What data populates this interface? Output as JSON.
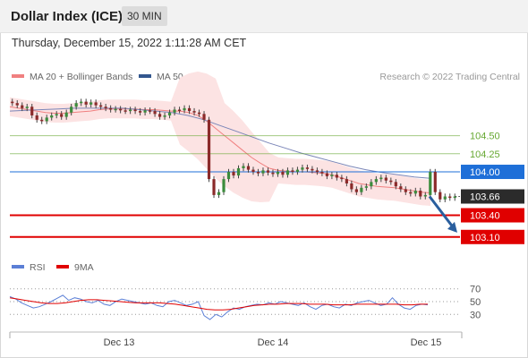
{
  "header": {
    "title": "Dollar Index (ICE)",
    "period": "30 MIN"
  },
  "datetime": "Thursday, December 15, 2022 1:11:28 AM CET",
  "legend": [
    {
      "label": "MA 20 + Bollinger Bands",
      "color": "#f08080"
    },
    {
      "label": "MA 50",
      "color": "#33578e"
    }
  ],
  "copyright": "Research © 2022 Trading Central",
  "rsi_legend": [
    {
      "label": "RSI",
      "color": "#5b7fd6"
    },
    {
      "label": "9MA",
      "color": "#e00000"
    }
  ],
  "chart_data": {
    "type": "candlestick",
    "x_labels": [
      "Dec 13",
      "Dec 14",
      "Dec 15"
    ],
    "ylim": [
      102.85,
      105.2
    ],
    "levels": [
      {
        "label": "104.50",
        "value": 104.5,
        "color": "#66a832",
        "style": "line"
      },
      {
        "label": "104.25",
        "value": 104.25,
        "color": "#66a832",
        "style": "line"
      },
      {
        "label": "104.00",
        "value": 104.0,
        "color": "#1e6fd8",
        "style": "line"
      },
      {
        "label": "103.66",
        "value": 103.66,
        "color": "#333333",
        "style": "current"
      },
      {
        "label": "103.40",
        "value": 103.4,
        "color": "#e00000",
        "style": "line"
      },
      {
        "label": "103.10",
        "value": 103.1,
        "color": "#e00000",
        "style": "line"
      }
    ],
    "closes": [
      104.95,
      104.92,
      104.88,
      104.9,
      104.78,
      104.72,
      104.7,
      104.75,
      104.78,
      104.8,
      104.76,
      104.82,
      104.9,
      104.95,
      104.97,
      104.93,
      104.96,
      104.92,
      104.9,
      104.88,
      104.86,
      104.87,
      104.85,
      104.84,
      104.86,
      104.84,
      104.82,
      104.85,
      104.84,
      104.8,
      104.76,
      104.78,
      104.82,
      104.86,
      104.85,
      104.88,
      104.84,
      104.82,
      104.8,
      104.72,
      103.9,
      103.68,
      103.72,
      103.9,
      104.0,
      103.95,
      104.05,
      104.08,
      104.03,
      104.0,
      103.98,
      104.02,
      103.99,
      103.97,
      104.0,
      103.96,
      104.02,
      104.0,
      104.03,
      104.06,
      104.04,
      104.02,
      104.0,
      103.98,
      103.94,
      103.96,
      103.92,
      103.9,
      103.84,
      103.76,
      103.72,
      103.78,
      103.8,
      103.86,
      103.9,
      103.92,
      103.88,
      103.86,
      103.8,
      103.76,
      103.72,
      103.7,
      103.74,
      103.66,
      103.68,
      104.0,
      103.72,
      103.62,
      103.66,
      103.64,
      103.66
    ],
    "ma20": [
      104.9,
      104.88,
      104.86,
      104.84,
      104.82,
      104.81,
      104.81,
      104.82,
      104.83,
      104.84,
      104.86,
      104.87,
      104.87,
      104.87,
      104.87,
      104.86,
      104.86,
      104.85,
      104.84,
      104.84,
      104.82,
      104.78,
      104.7,
      104.6,
      104.5,
      104.4,
      104.3,
      104.2,
      104.12,
      104.05,
      104.02,
      104.01,
      104.0,
      104.0,
      103.99,
      103.98,
      103.96,
      103.92,
      103.88,
      103.84,
      103.82,
      103.8,
      103.79,
      103.78,
      103.76,
      103.74,
      103.72,
      103.71
    ],
    "ma50": [
      104.84,
      104.85,
      104.86,
      104.87,
      104.88,
      104.88,
      104.88,
      104.88,
      104.86,
      104.84,
      104.82,
      104.78,
      104.72,
      104.64,
      104.56,
      104.48,
      104.4,
      104.33,
      104.26,
      104.2,
      104.14,
      104.08,
      104.03,
      103.99,
      103.96,
      103.93,
      103.91
    ],
    "rsi": {
      "ylim": [
        15,
        85
      ],
      "levels": [
        70,
        50,
        30
      ],
      "rsi_values": [
        58,
        54,
        48,
        44,
        40,
        42,
        46,
        50,
        55,
        60,
        52,
        56,
        54,
        50,
        48,
        52,
        46,
        44,
        50,
        54,
        52,
        50,
        48,
        46,
        48,
        44,
        42,
        50,
        52,
        48,
        44,
        46,
        50,
        28,
        22,
        30,
        26,
        34,
        40,
        38,
        42,
        44,
        46,
        45,
        48,
        46,
        50,
        48,
        46,
        44,
        48,
        42,
        38,
        44,
        46,
        42,
        40,
        46,
        44,
        48,
        50,
        52,
        48,
        44,
        46,
        56,
        46,
        40,
        38,
        44,
        46,
        45
      ],
      "ma9_values": [
        56,
        54,
        52,
        50,
        48,
        47,
        47,
        48,
        50,
        52,
        53,
        53,
        52,
        51,
        50,
        49,
        48,
        48,
        48,
        48,
        47,
        46,
        44,
        42,
        40,
        38,
        37,
        37,
        38,
        40,
        42,
        44,
        45,
        46,
        46,
        47,
        47,
        47,
        46,
        46,
        46,
        45,
        45,
        45,
        46,
        46,
        46,
        46,
        46,
        46,
        45,
        45,
        46,
        46
      ]
    }
  }
}
